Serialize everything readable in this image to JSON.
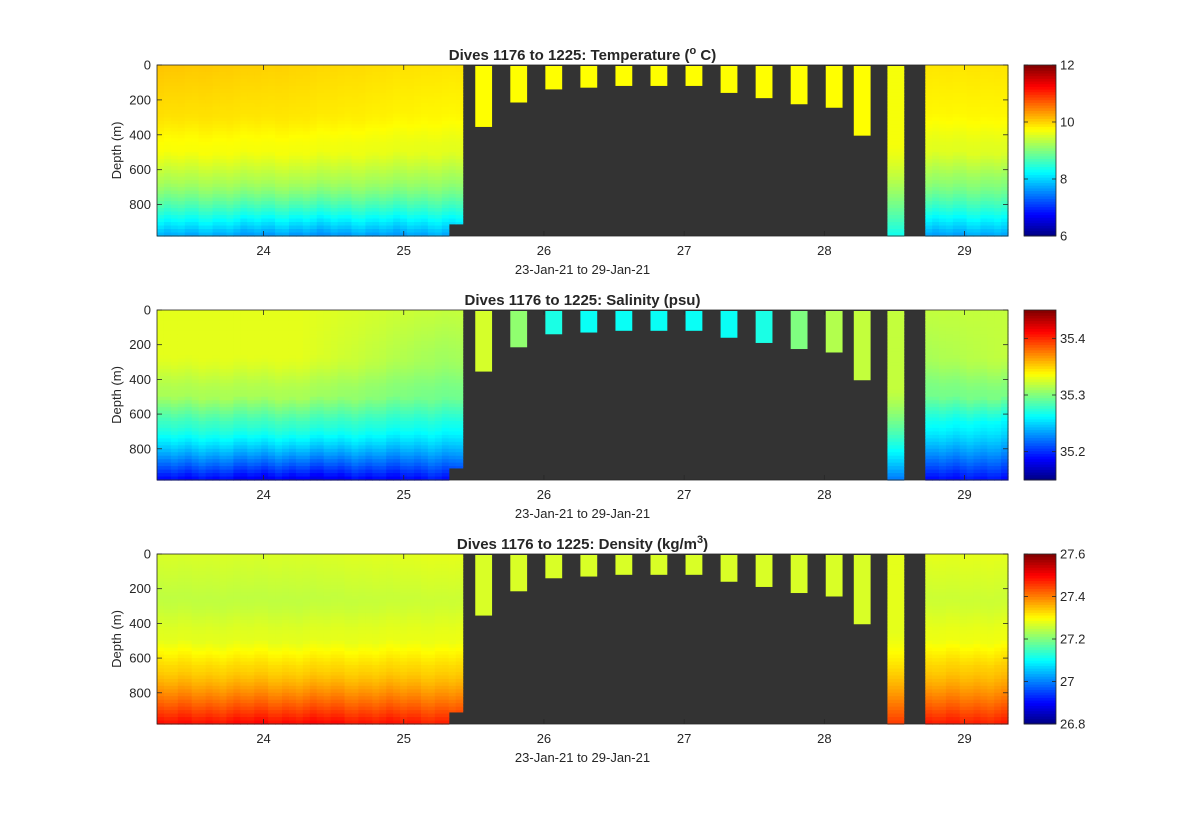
{
  "chart_data": [
    {
      "type": "heatmap",
      "title_main": "Dives 1176 to 1225: Temperature (",
      "title_sup": "o",
      "title_end": " C)",
      "ylabel": "Depth (m)",
      "xlabel": "23-Jan-21 to 29-Jan-21",
      "xticks": [
        "24",
        "25",
        "26",
        "27",
        "28",
        "29"
      ],
      "yticks": [
        "0",
        "200",
        "400",
        "600",
        "800"
      ],
      "xlim": [
        23.24,
        29.31
      ],
      "ylim": [
        980,
        0
      ],
      "colorbar": {
        "range": [
          6,
          12
        ],
        "ticks": [
          "6",
          "8",
          "10",
          "12"
        ]
      },
      "profiles": {
        "surface": [
          10.1,
          10.0,
          9.9,
          9.9
        ],
        "mid": [
          9.95,
          9.9,
          9.8,
          9.8
        ],
        "deep_top": [
          9.3,
          9.3,
          9.2,
          9.1
        ],
        "deep_bottom": [
          7.8,
          7.6,
          7.7,
          7.7
        ],
        "short_dive_value": 9.75,
        "long_dive_top": 9.7,
        "long_dive_bottom": 8.3
      }
    },
    {
      "type": "heatmap",
      "title_main": "Dives 1176 to 1225: Salinity (psu)",
      "title_sup": "",
      "title_end": "",
      "ylabel": "Depth (m)",
      "xlabel": "23-Jan-21 to 29-Jan-21",
      "xticks": [
        "24",
        "25",
        "26",
        "27",
        "28",
        "29"
      ],
      "yticks": [
        "0",
        "200",
        "400",
        "600",
        "800"
      ],
      "xlim": [
        23.24,
        29.31
      ],
      "ylim": [
        980,
        0
      ],
      "colorbar": {
        "range": [
          35.15,
          35.45
        ],
        "ticks": [
          "35.2",
          "35.3",
          "35.4"
        ]
      },
      "profiles": {
        "surface": [
          35.33,
          35.33,
          35.32,
          35.32
        ],
        "mid": [
          35.33,
          35.33,
          35.31,
          35.32
        ],
        "deep_top": [
          35.28,
          35.28,
          35.27,
          35.26
        ],
        "deep_bottom": [
          35.19,
          35.18,
          35.19,
          35.19
        ],
        "short_dive_values": [
          35.325,
          35.305,
          35.27,
          35.265,
          35.265,
          35.265,
          35.265,
          35.265,
          35.27,
          35.3,
          35.315,
          35.32,
          35.325
        ],
        "long_dive_top": 35.32,
        "long_dive_bottom": 35.22
      }
    },
    {
      "type": "heatmap",
      "title_main": "Dives 1176 to 1225: Density (kg/m",
      "title_sup": "3",
      "title_end": ")",
      "ylabel": "Depth (m)",
      "xlabel": "23-Jan-21 to 29-Jan-21",
      "xticks": [
        "24",
        "25",
        "26",
        "27",
        "28",
        "29"
      ],
      "yticks": [
        "0",
        "200",
        "400",
        "600",
        "800"
      ],
      "xlim": [
        23.24,
        29.31
      ],
      "ylim": [
        980,
        0
      ],
      "colorbar": {
        "range": [
          26.8,
          27.6
        ],
        "ticks": [
          "26.8",
          "27",
          "27.2",
          "27.4",
          "27.6"
        ]
      },
      "profiles": {
        "surface": [
          27.27,
          27.27,
          27.28,
          27.28
        ],
        "mid": [
          27.25,
          27.25,
          27.26,
          27.26
        ],
        "deep_top": [
          27.33,
          27.33,
          27.33,
          27.34
        ],
        "deep_bottom": [
          27.49,
          27.5,
          27.48,
          27.48
        ],
        "short_dive_value": 27.27,
        "long_dive_top": 27.28,
        "long_dive_bottom": 27.46
      }
    }
  ],
  "dives": {
    "continuous_start": 23.24,
    "continuous_end": 25.42,
    "step_at": 25.28,
    "step_depth": 910,
    "short_dives": [
      {
        "x0": 25.51,
        "x1": 25.63,
        "depth": 355
      },
      {
        "x0": 25.76,
        "x1": 25.88,
        "depth": 215
      },
      {
        "x0": 26.01,
        "x1": 26.13,
        "depth": 140
      },
      {
        "x0": 26.26,
        "x1": 26.38,
        "depth": 130
      },
      {
        "x0": 26.51,
        "x1": 26.63,
        "depth": 120
      },
      {
        "x0": 26.76,
        "x1": 26.88,
        "depth": 120
      },
      {
        "x0": 27.01,
        "x1": 27.13,
        "depth": 120
      },
      {
        "x0": 27.26,
        "x1": 27.38,
        "depth": 160
      },
      {
        "x0": 27.51,
        "x1": 27.63,
        "depth": 190
      },
      {
        "x0": 27.76,
        "x1": 27.88,
        "depth": 225
      },
      {
        "x0": 28.01,
        "x1": 28.13,
        "depth": 245
      },
      {
        "x0": 28.21,
        "x1": 28.33,
        "depth": 405
      }
    ],
    "long_dive": {
      "x0": 28.45,
      "x1": 28.57,
      "depth": 980
    },
    "final_start": 28.72,
    "final_end": 29.31
  },
  "colors": {
    "background": "#ffffff",
    "nodata": "#333333",
    "axis": "#262626"
  }
}
